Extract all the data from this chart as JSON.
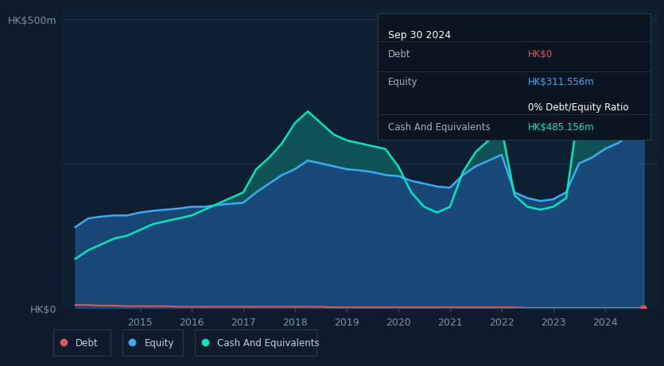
{
  "bg_color": "#0d1b2a",
  "plot_bg_color": "#0d1f30",
  "grid_color": "#1e3045",
  "title_y_label": "HK$500m",
  "bottom_y_label": "HK$0",
  "debt_color": "#e05555",
  "equity_color": "#3fa9f5",
  "cash_color": "#00e5c0",
  "equity_fill_color": "#1a4a7a",
  "cash_fill_color": "#0d5c5c",
  "years": [
    2013.75,
    2014.0,
    2014.25,
    2014.5,
    2014.75,
    2015.0,
    2015.25,
    2015.5,
    2015.75,
    2016.0,
    2016.25,
    2016.5,
    2016.75,
    2017.0,
    2017.25,
    2017.5,
    2017.75,
    2018.0,
    2018.25,
    2018.5,
    2018.75,
    2019.0,
    2019.25,
    2019.5,
    2019.75,
    2020.0,
    2020.25,
    2020.5,
    2020.75,
    2021.0,
    2021.25,
    2021.5,
    2021.75,
    2022.0,
    2022.25,
    2022.5,
    2022.75,
    2023.0,
    2023.25,
    2023.5,
    2023.75,
    2024.0,
    2024.25,
    2024.5,
    2024.75
  ],
  "equity": [
    140,
    155,
    158,
    160,
    160,
    165,
    168,
    170,
    172,
    175,
    175,
    178,
    180,
    182,
    200,
    215,
    230,
    240,
    255,
    250,
    245,
    240,
    238,
    235,
    230,
    228,
    220,
    215,
    210,
    208,
    230,
    245,
    255,
    265,
    200,
    190,
    185,
    188,
    200,
    250,
    260,
    275,
    285,
    300,
    311
  ],
  "cash": [
    85,
    100,
    110,
    120,
    125,
    135,
    145,
    150,
    155,
    160,
    170,
    180,
    190,
    200,
    240,
    260,
    285,
    320,
    340,
    320,
    300,
    290,
    285,
    280,
    275,
    245,
    200,
    175,
    165,
    175,
    235,
    270,
    290,
    310,
    195,
    175,
    170,
    175,
    190,
    350,
    400,
    430,
    450,
    480,
    485
  ],
  "debt": [
    5,
    5,
    4,
    4,
    3,
    3,
    3,
    3,
    2,
    2,
    2,
    2,
    2,
    2,
    2,
    2,
    2,
    2,
    2,
    2,
    1,
    1,
    1,
    1,
    1,
    1,
    1,
    1,
    1,
    1,
    1,
    1,
    1,
    1,
    1,
    0,
    0,
    0,
    0,
    0,
    0,
    0,
    0,
    0,
    0
  ],
  "xlim": [
    2013.5,
    2025.0
  ],
  "ylim": [
    0,
    520
  ],
  "xticks": [
    2015,
    2016,
    2017,
    2018,
    2019,
    2020,
    2021,
    2022,
    2023,
    2024
  ],
  "tooltip": {
    "date": "Sep 30 2024",
    "debt_label": "Debt",
    "debt_value": "HK$0",
    "equity_label": "Equity",
    "equity_value": "HK$311.556m",
    "ratio_value": "0% Debt/Equity Ratio",
    "cash_label": "Cash And Equivalents",
    "cash_value": "HK$485.156m",
    "debt_value_color": "#e05555",
    "equity_value_color": "#3fa9f5",
    "ratio_color": "#ffffff",
    "cash_value_color": "#00e5c0",
    "label_color": "#a0b0c0",
    "date_color": "#ffffff",
    "box_bg": "#0a1520",
    "box_edge": "#2a3a4a"
  },
  "legend": [
    {
      "label": "Debt",
      "color": "#e05555"
    },
    {
      "label": "Equity",
      "color": "#3fa9f5"
    },
    {
      "label": "Cash And Equivalents",
      "color": "#00e5c0"
    }
  ]
}
